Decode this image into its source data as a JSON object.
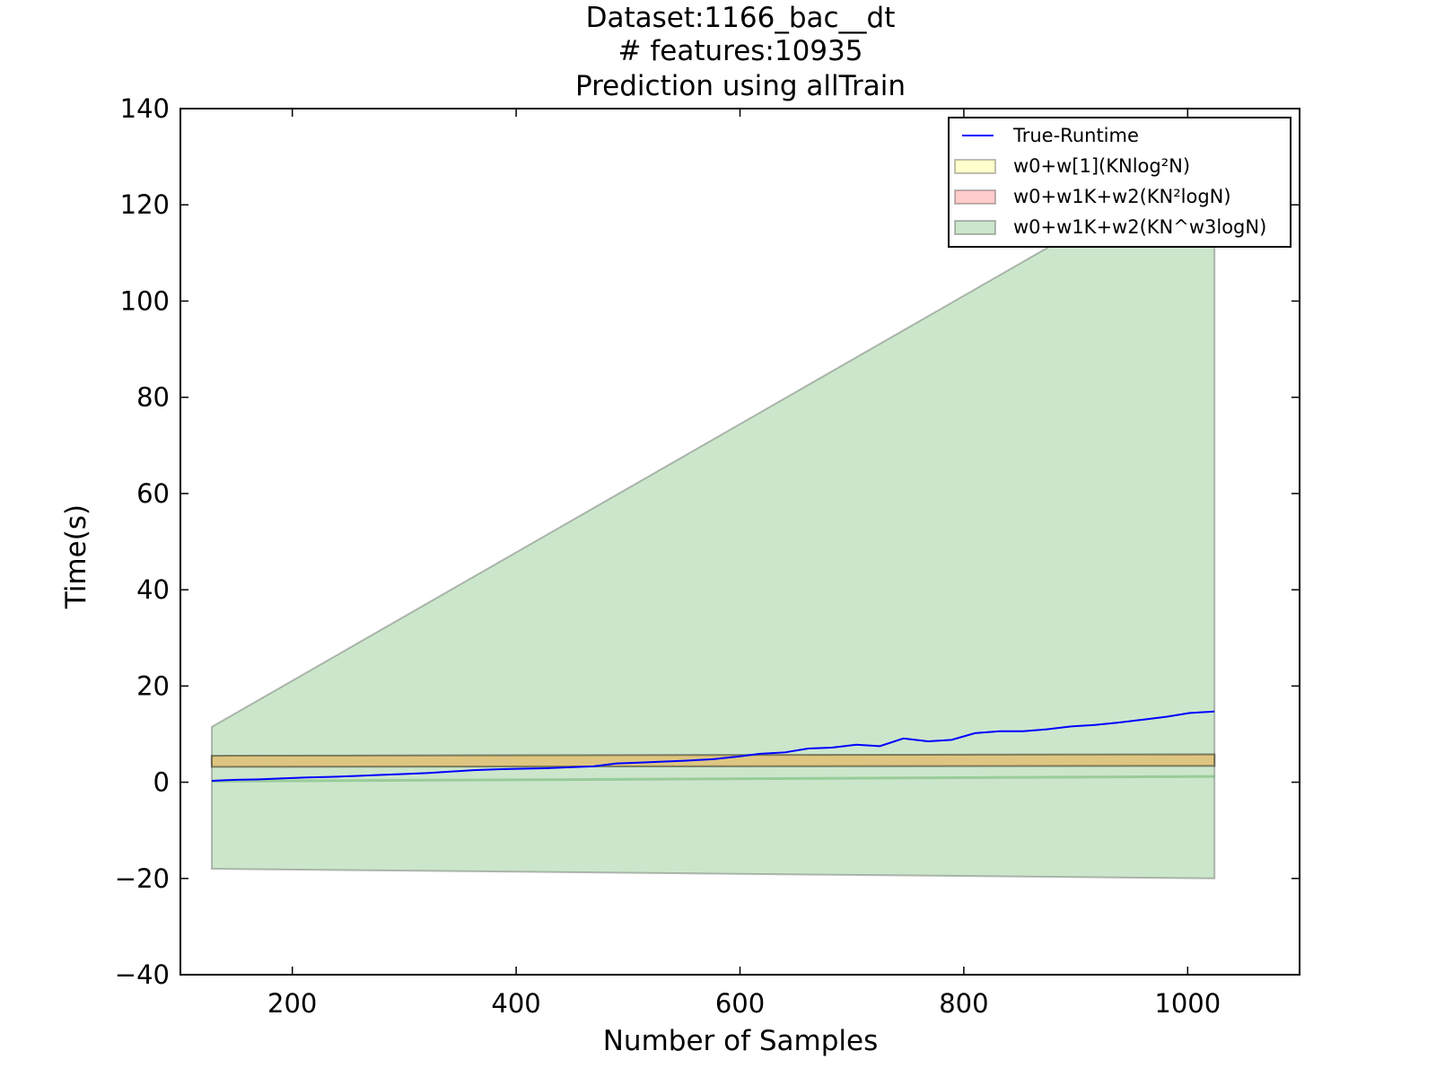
{
  "chart_data": {
    "type": "line",
    "title_lines": [
      "Dataset:1166_bac__dt",
      "# features:10935",
      "Prediction using allTrain"
    ],
    "xlabel": "Number of Samples",
    "ylabel": "Time(s)",
    "xlim": [
      100,
      1100
    ],
    "ylim": [
      -40,
      140
    ],
    "xticks": [
      200,
      400,
      600,
      800,
      1000
    ],
    "yticks": [
      -40,
      -20,
      0,
      20,
      40,
      60,
      80,
      100,
      120,
      140
    ],
    "xtick_labels": [
      "200",
      "400",
      "600",
      "800",
      "1000"
    ],
    "ytick_labels": [
      "−40",
      "−20",
      "0",
      "20",
      "40",
      "60",
      "80",
      "100",
      "120",
      "140"
    ],
    "grid": false,
    "legend_position": "top-right",
    "series": [
      {
        "name": "True-Runtime",
        "kind": "line",
        "color": "#0000ff",
        "x": [
          128,
          149,
          170,
          192,
          213,
          234,
          256,
          277,
          298,
          320,
          341,
          362,
          384,
          405,
          426,
          448,
          469,
          490,
          512,
          533,
          554,
          576,
          597,
          618,
          640,
          661,
          682,
          704,
          725,
          746,
          768,
          789,
          810,
          832,
          853,
          874,
          896,
          917,
          938,
          960,
          981,
          1002,
          1024
        ],
        "y": [
          0.3,
          0.5,
          0.6,
          0.8,
          1.0,
          1.1,
          1.3,
          1.5,
          1.7,
          1.9,
          2.2,
          2.5,
          2.7,
          2.8,
          2.9,
          3.1,
          3.3,
          3.9,
          4.1,
          4.3,
          4.5,
          4.8,
          5.3,
          5.9,
          6.2,
          7.0,
          7.2,
          7.8,
          7.5,
          9.1,
          8.5,
          8.8,
          10.2,
          10.6,
          10.6,
          11.0,
          11.6,
          11.9,
          12.4,
          13.0,
          13.6,
          14.4,
          14.7
        ]
      },
      {
        "name": "w0+w[1](KNlog²N)",
        "kind": "band",
        "color": "#ffff00",
        "opacity": 0.2,
        "x": [
          128,
          1024
        ],
        "lower": [
          3.2,
          3.4
        ],
        "upper": [
          5.5,
          5.8
        ]
      },
      {
        "name": "w0+w1K+w2(KN²logN)",
        "kind": "band",
        "color": "#ff0000",
        "opacity": 0.2,
        "x": [
          128,
          1024
        ],
        "lower": [
          3.2,
          3.4
        ],
        "upper": [
          5.5,
          5.8
        ]
      },
      {
        "name": "w0+w1K+w2(KN^w3logN)",
        "kind": "band",
        "color": "#008000",
        "opacity": 0.2,
        "x": [
          128,
          1024
        ],
        "lower": [
          -18.0,
          -20.0
        ],
        "upper": [
          11.5,
          131.0
        ]
      }
    ],
    "center_line": {
      "x": [
        128,
        1024
      ],
      "y": [
        0.2,
        1.2
      ]
    }
  }
}
